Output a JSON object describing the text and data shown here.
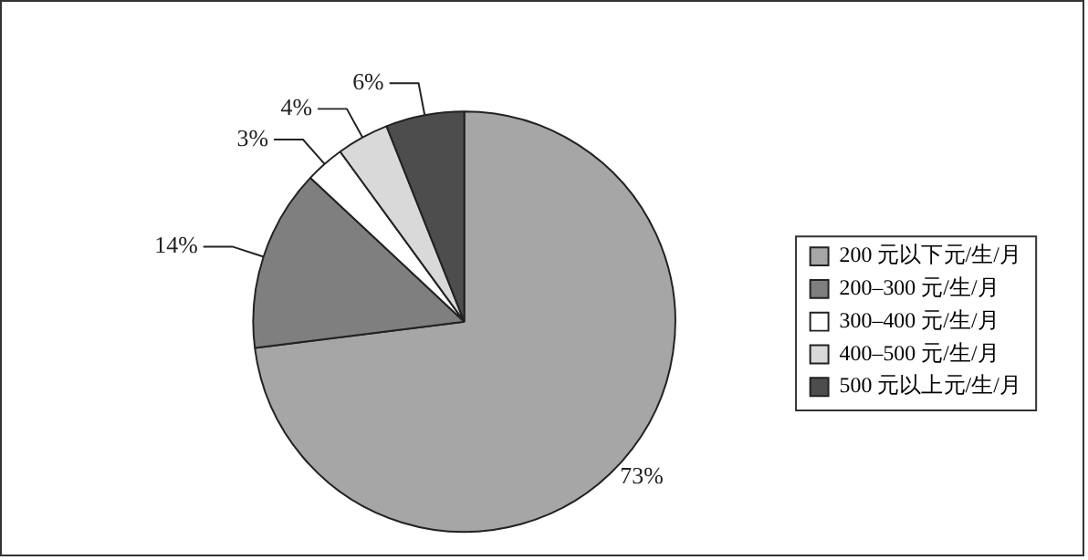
{
  "chart_data": {
    "type": "pie",
    "categories": [
      "200 元以下元/生/月",
      "200–300 元/生/月",
      "300–400 元/生/月",
      "400–500 元/生/月",
      "500 元以上元/生/月"
    ],
    "values": [
      73,
      14,
      3,
      4,
      6
    ],
    "colors": [
      "#a6a6a6",
      "#7f7f7f",
      "#ffffff",
      "#d9d9d9",
      "#4d4d4d"
    ],
    "value_labels": [
      "73%",
      "14%",
      "3%",
      "4%",
      "6%"
    ],
    "legend": "right"
  }
}
